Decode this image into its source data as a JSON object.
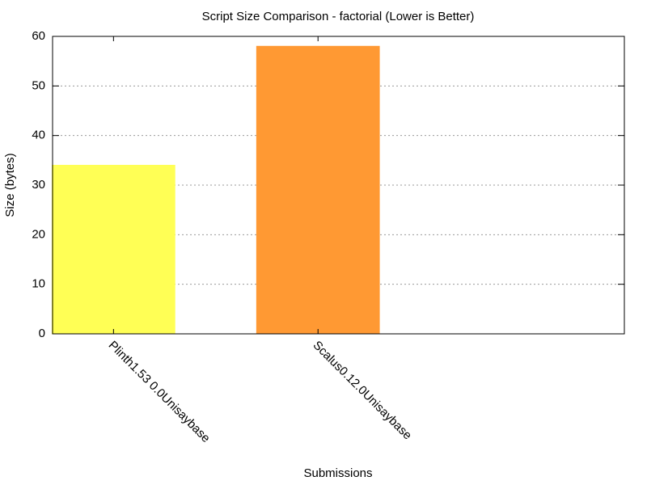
{
  "chart_data": {
    "type": "bar",
    "title": "Script Size Comparison - factorial (Lower is Better)",
    "x_label": "Submissions",
    "y_label": "Size (bytes)",
    "categories": [
      "Plinth1.53 0.0Unisaybase",
      "Scalus0.12.0Unisaybase"
    ],
    "values": [
      34,
      58
    ],
    "colors": [
      "#ffff55",
      "#ff9933"
    ],
    "ylim": [
      0,
      60
    ],
    "yticks": [
      0,
      10,
      20,
      30,
      40,
      50,
      60
    ],
    "grid": true
  }
}
